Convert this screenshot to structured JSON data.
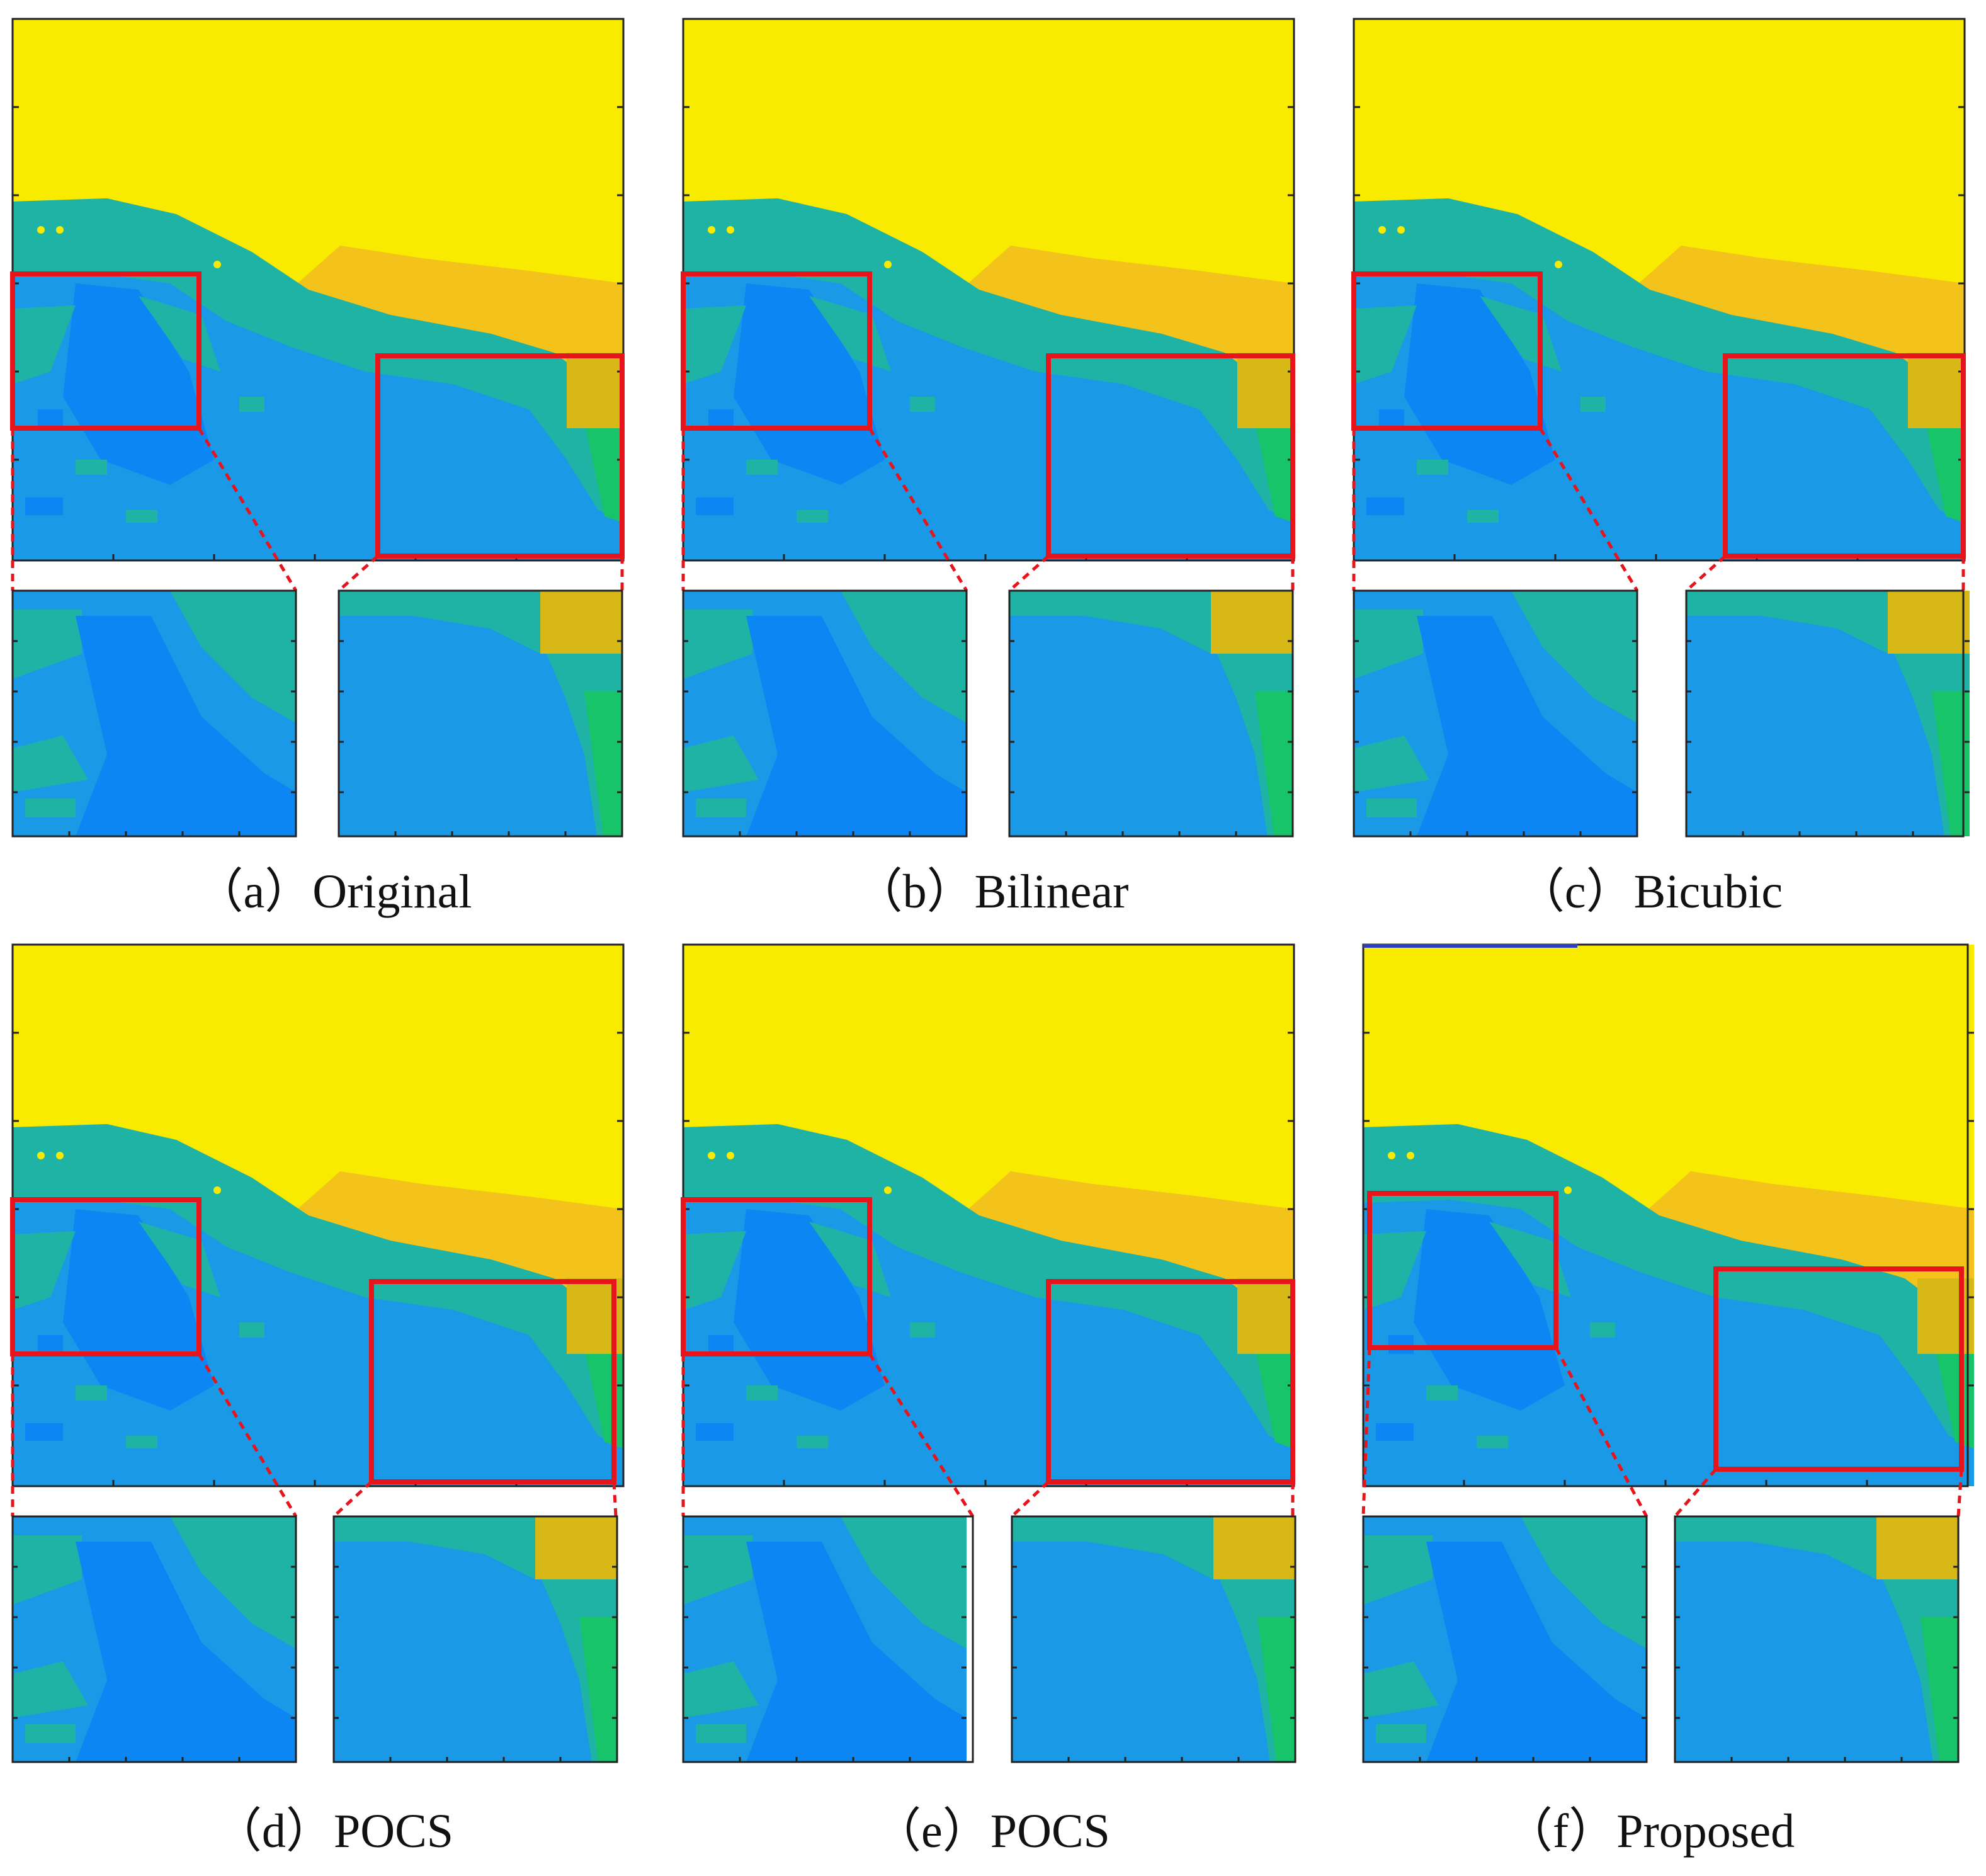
{
  "figure": {
    "panels": [
      {
        "id": "a",
        "label": "（a）",
        "title": "Original"
      },
      {
        "id": "b",
        "label": "（b）",
        "title": "Bilinear"
      },
      {
        "id": "c",
        "label": "（c）",
        "title": "Bicubic"
      },
      {
        "id": "d",
        "label": "（d）",
        "title": "POCS"
      },
      {
        "id": "e",
        "label": "（e）",
        "title": "POCS"
      },
      {
        "id": "f",
        "label": "（f）",
        "title": "Proposed"
      }
    ],
    "colors": {
      "yellow": "#f8eb00",
      "orange": "#f2c21c",
      "teal": "#1fb3a6",
      "blue": "#1a9ae6",
      "deep_blue": "#0b86f2",
      "green": "#17c46a",
      "highlight": "#e8141c",
      "axis": "#222222"
    }
  }
}
